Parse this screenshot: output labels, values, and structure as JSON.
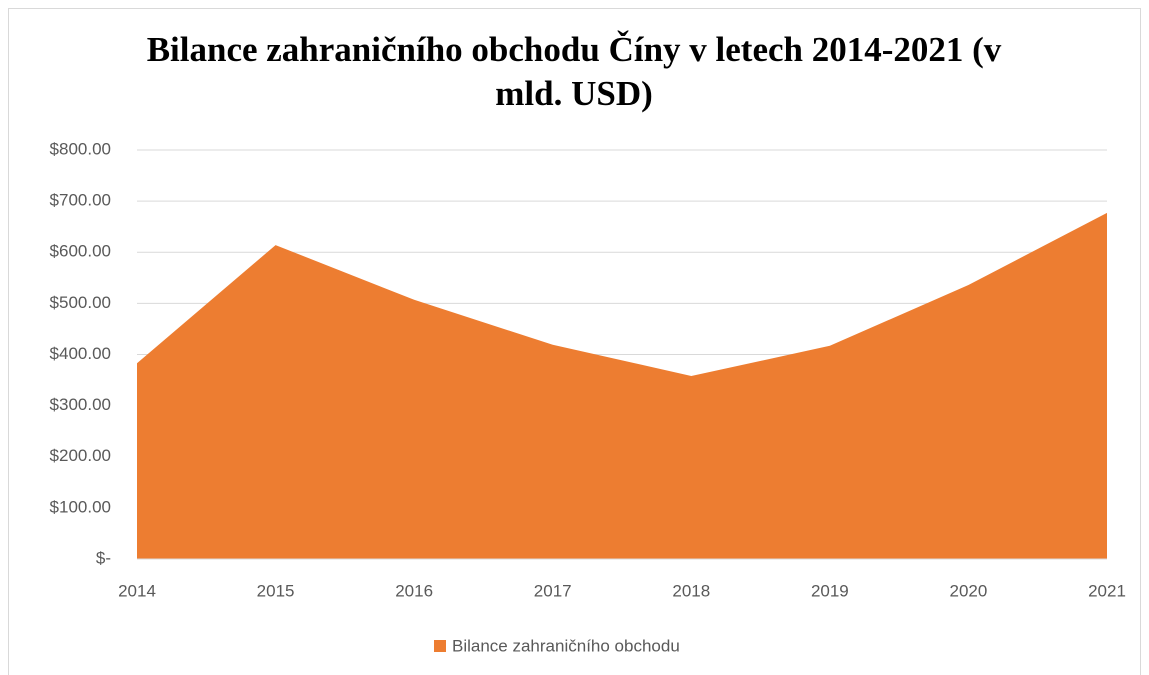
{
  "chart_data": {
    "type": "area",
    "title": "Bilance zahraničního obchodu Číny v letech 2014-2021 (v mld. USD)",
    "categories": [
      "2014",
      "2015",
      "2016",
      "2017",
      "2018",
      "2019",
      "2020",
      "2021"
    ],
    "series": [
      {
        "name": "Bilance zahraničního obchodu",
        "color": "#ed7d31",
        "values": [
          383,
          614,
          507,
          419,
          358,
          417,
          536,
          677
        ]
      }
    ],
    "ylim": [
      0,
      800
    ],
    "yticks": [
      {
        "value": 0,
        "label": "$-"
      },
      {
        "value": 100,
        "label": "$100.00"
      },
      {
        "value": 200,
        "label": "$200.00"
      },
      {
        "value": 300,
        "label": "$300.00"
      },
      {
        "value": 400,
        "label": "$400.00"
      },
      {
        "value": 500,
        "label": "$500.00"
      },
      {
        "value": 600,
        "label": "$600.00"
      },
      {
        "value": 700,
        "label": "$700.00"
      },
      {
        "value": 800,
        "label": "$800.00"
      }
    ],
    "grid": true,
    "legend": "bottom"
  }
}
